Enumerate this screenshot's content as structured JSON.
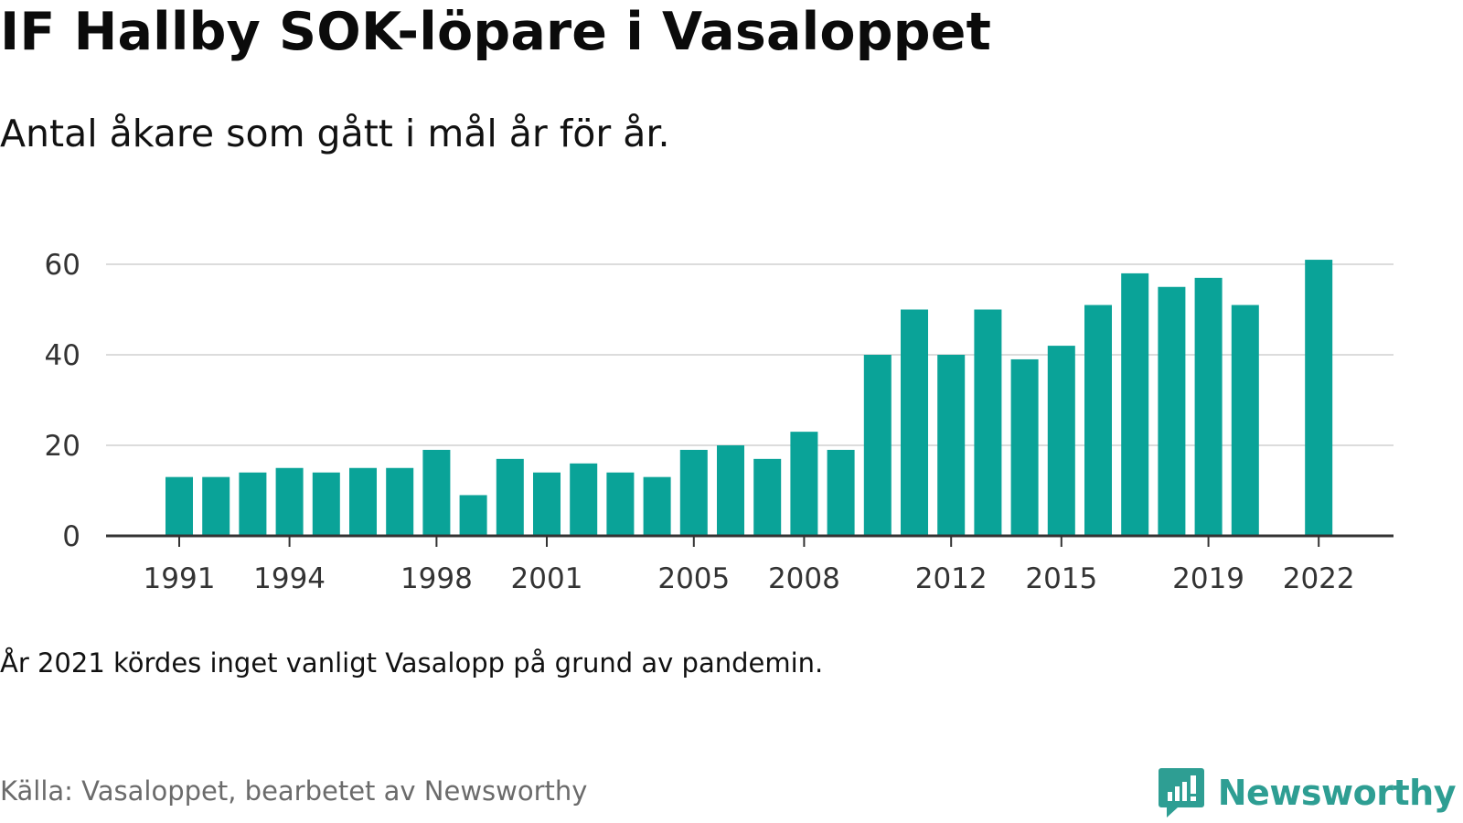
{
  "title": "IF Hallby SOK-löpare i Vasaloppet",
  "subtitle": "Antal åkare som gått i mål år för år.",
  "note": "År 2021 kördes inget vanligt Vasalopp på grund av pandemin.",
  "source": "Källa: Vasaloppet, bearbetet av Newsworthy",
  "brand": {
    "name": "Newsworthy",
    "logo_icon": "newsworthy-logo-icon",
    "color": "#2e9e93"
  },
  "chart_data": {
    "type": "bar",
    "bar_color": "#0aa398",
    "grid": true,
    "ylim": [
      0,
      60
    ],
    "y_ticks": [
      0,
      20,
      40,
      60
    ],
    "x_ticks": [
      1991,
      1994,
      1998,
      2001,
      2005,
      2008,
      2012,
      2015,
      2019,
      2022
    ],
    "categories": [
      1991,
      1992,
      1993,
      1994,
      1995,
      1996,
      1997,
      1998,
      1999,
      2000,
      2001,
      2002,
      2003,
      2004,
      2005,
      2006,
      2007,
      2008,
      2009,
      2010,
      2011,
      2012,
      2013,
      2014,
      2015,
      2016,
      2017,
      2018,
      2019,
      2020,
      2021,
      2022
    ],
    "values": [
      13,
      13,
      14,
      15,
      14,
      15,
      15,
      19,
      9,
      17,
      14,
      16,
      14,
      13,
      19,
      20,
      17,
      23,
      19,
      40,
      50,
      40,
      50,
      39,
      42,
      51,
      58,
      55,
      57,
      51,
      null,
      61
    ]
  }
}
